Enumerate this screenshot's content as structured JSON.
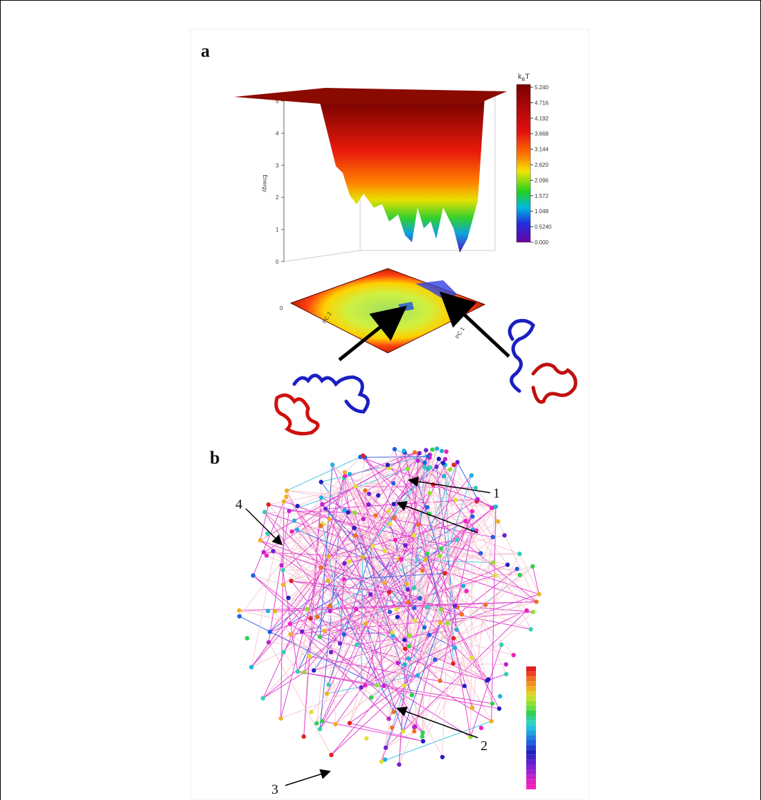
{
  "panels": [
    {
      "label": "a",
      "colorbar": {
        "title": "k",
        "subscript": "B",
        "title_suffix": "T",
        "labels": [
          "5.240",
          "4.716",
          "4.192",
          "3.668",
          "3.144",
          "2.620",
          "2.096",
          "1.572",
          "1.048",
          "0.5240",
          "0.000"
        ]
      },
      "energy_axis": {
        "label": "Energy",
        "ticks": [
          "5",
          "4",
          "3",
          "2",
          "1",
          "0"
        ]
      },
      "floor_tick": "0",
      "floor_axes": [
        "PC 2",
        "PC 1"
      ]
    },
    {
      "label": "b",
      "annotations": [
        "1",
        "2",
        "3",
        "4"
      ]
    }
  ]
}
